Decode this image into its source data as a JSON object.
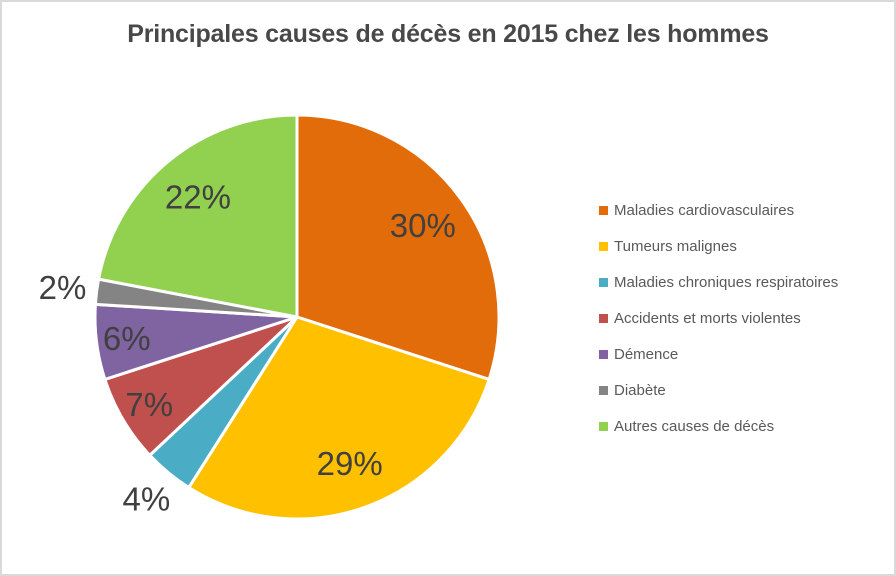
{
  "frame": {
    "background_color": "#ffffff",
    "border_color": "#d9d9d9"
  },
  "chart_data": {
    "type": "pie",
    "title": "Principales causes de décès en 2015 chez les hommes",
    "unit": "%",
    "start_angle_deg": 0,
    "direction": "clockwise",
    "legend_position": "right",
    "grid": false,
    "slices": [
      {
        "label": "Maladies cardiovasculaires",
        "value": 30,
        "data_label": "30%",
        "color": "#E36C0A",
        "label_outside": false
      },
      {
        "label": "Tumeurs malignes",
        "value": 29,
        "data_label": "29%",
        "color": "#FFC000",
        "label_outside": false
      },
      {
        "label": "Maladies chroniques respiratoires",
        "value": 4,
        "data_label": "4%",
        "color": "#4BACC6",
        "label_outside": true
      },
      {
        "label": "Accidents et morts violentes",
        "value": 7,
        "data_label": "7%",
        "color": "#C0504D",
        "label_outside": false
      },
      {
        "label": "Démence",
        "value": 6,
        "data_label": "6%",
        "color": "#8064A2",
        "label_outside": false
      },
      {
        "label": "Diabète",
        "value": 2,
        "data_label": "2%",
        "color": "#848484",
        "label_outside": true
      },
      {
        "label": "Autres causes de décès",
        "value": 22,
        "data_label": "22%",
        "color": "#92D050",
        "label_outside": false
      }
    ],
    "text_colors": {
      "title": "#484848",
      "data_labels": "#404040",
      "legend": "#595959"
    }
  }
}
